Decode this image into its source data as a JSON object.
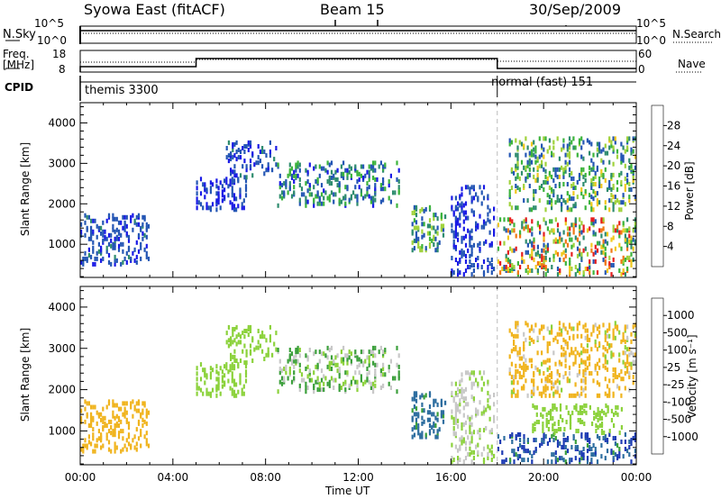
{
  "header": {
    "station": "Syowa East (fitACF)",
    "beam": "Beam 15",
    "date": "30/Sep/2009"
  },
  "panels": {
    "nsky": {
      "label": "N.Sky",
      "right_label": "N.Search",
      "ticks_left": [
        "10^5",
        "10^0"
      ],
      "ticks_right": [
        "10^5",
        "10^0"
      ]
    },
    "freq": {
      "label_line1": "Freq.",
      "label_line2": "[MHz]",
      "right_label": "Nave",
      "ticks_left": [
        "18",
        "8"
      ],
      "ticks_right": [
        "60",
        "0"
      ]
    },
    "cpid": {
      "label": "CPID",
      "segments": [
        {
          "text": "themis 3300"
        },
        {
          "text": "normal (fast) 151"
        }
      ]
    }
  },
  "x_axis": {
    "label": "Time UT",
    "ticks": [
      "00:00",
      "04:00",
      "08:00",
      "12:00",
      "16:00",
      "20:00",
      "00:00"
    ]
  },
  "colors": {
    "power": [
      "#1a1ae6",
      "#2456b4",
      "#2e8c6e",
      "#3cb43c",
      "#a0d23c",
      "#f0c81e",
      "#f07814",
      "#e61e1e"
    ],
    "velocity": [
      "#1e3cb4",
      "#2e6ea0",
      "#3ca03c",
      "#8cd23c",
      "#c8c8c8",
      "#f0b41e",
      "#f07814",
      "#e63214",
      "#d20000"
    ]
  },
  "chart_data": [
    {
      "type": "heatmap",
      "panel": "power",
      "xlabel": "Time UT",
      "ylabel": "Slant Range [km]",
      "xlim": [
        0,
        24
      ],
      "ylim": [
        180,
        4500
      ],
      "yticks": [
        1000,
        2000,
        3000,
        4000
      ],
      "colorbar": {
        "label": "Power [dB]",
        "ticks": [
          "4",
          "8",
          "12",
          "16",
          "20",
          "24",
          "28"
        ],
        "range": [
          0,
          30
        ]
      },
      "echo_regions": [
        {
          "t": [
            0.0,
            3.0
          ],
          "r": [
            450,
            1700
          ],
          "value_range": [
            2,
            8
          ]
        },
        {
          "t": [
            5.0,
            7.2
          ],
          "r": [
            1800,
            2600
          ],
          "value_range": [
            2,
            6
          ]
        },
        {
          "t": [
            6.2,
            8.5
          ],
          "r": [
            2600,
            3500
          ],
          "value_range": [
            2,
            8
          ]
        },
        {
          "t": [
            8.5,
            13.8
          ],
          "r": [
            1900,
            3000
          ],
          "value_range": [
            2,
            14
          ]
        },
        {
          "t": [
            14.3,
            15.8
          ],
          "r": [
            800,
            1900
          ],
          "value_range": [
            4,
            18
          ]
        },
        {
          "t": [
            16.0,
            17.9
          ],
          "r": [
            200,
            2400
          ],
          "value_range": [
            2,
            6
          ]
        },
        {
          "t": [
            18.0,
            24.0
          ],
          "r": [
            200,
            1600
          ],
          "value_range": [
            4,
            30
          ]
        },
        {
          "t": [
            18.5,
            24.0
          ],
          "r": [
            1800,
            3600
          ],
          "value_range": [
            4,
            20
          ]
        }
      ]
    },
    {
      "type": "heatmap",
      "panel": "velocity",
      "xlabel": "Time UT",
      "ylabel": "Slant Range [km]",
      "xlim": [
        0,
        24
      ],
      "ylim": [
        180,
        4500
      ],
      "yticks": [
        1000,
        2000,
        3000,
        4000
      ],
      "colorbar": {
        "label": "Velocity [m s⁻¹]",
        "ticks": [
          "1000",
          "500",
          "100",
          "25",
          "-25",
          "-100",
          "-500",
          "-1000"
        ],
        "range": [
          -1000,
          1000
        ]
      },
      "echo_regions": [
        {
          "t": [
            0.0,
            3.0
          ],
          "r": [
            450,
            1700
          ],
          "value_range": [
            -500,
            -100
          ]
        },
        {
          "t": [
            5.0,
            7.2
          ],
          "r": [
            1800,
            2600
          ],
          "value_range": [
            -25,
            25
          ]
        },
        {
          "t": [
            6.2,
            8.5
          ],
          "r": [
            2600,
            3500
          ],
          "value_range": [
            -25,
            25
          ]
        },
        {
          "t": [
            8.5,
            13.8
          ],
          "r": [
            1900,
            3000
          ],
          "value_range": [
            -100,
            100
          ]
        },
        {
          "t": [
            14.3,
            15.8
          ],
          "r": [
            800,
            1900
          ],
          "value_range": [
            25,
            500
          ]
        },
        {
          "t": [
            16.0,
            17.9
          ],
          "r": [
            200,
            2400
          ],
          "value_range": [
            -100,
            25
          ]
        },
        {
          "t": [
            18.0,
            24.0
          ],
          "r": [
            200,
            900
          ],
          "value_range": [
            25,
            1000
          ]
        },
        {
          "t": [
            19.5,
            23.5
          ],
          "r": [
            900,
            1600
          ],
          "value_range": [
            -25,
            25
          ]
        },
        {
          "t": [
            18.5,
            24.0
          ],
          "r": [
            1800,
            3600
          ],
          "value_range": [
            -500,
            25
          ]
        }
      ]
    }
  ]
}
